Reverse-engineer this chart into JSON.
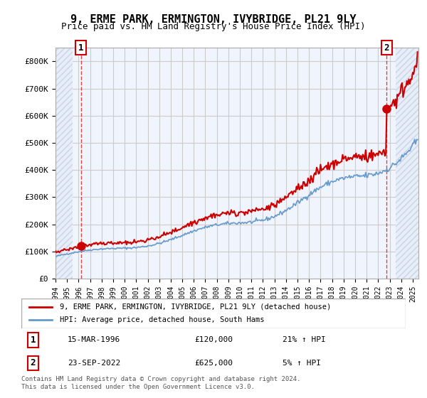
{
  "title": "9, ERME PARK, ERMINGTON, IVYBRIDGE, PL21 9LY",
  "subtitle": "Price paid vs. HM Land Registry's House Price Index (HPI)",
  "legend_line1": "9, ERME PARK, ERMINGTON, IVYBRIDGE, PL21 9LY (detached house)",
  "legend_line2": "HPI: Average price, detached house, South Hams",
  "table_row1": [
    "1",
    "15-MAR-1996",
    "£120,000",
    "21% ↑ HPI"
  ],
  "table_row2": [
    "2",
    "23-SEP-2022",
    "£625,000",
    "5% ↑ HPI"
  ],
  "footer": "Contains HM Land Registry data © Crown copyright and database right 2024.\nThis data is licensed under the Open Government Licence v3.0.",
  "hatch_color": "#c8d4e8",
  "hatch_bg": "#e8eef8",
  "red_line_color": "#cc0000",
  "blue_line_color": "#6699cc",
  "grid_color": "#cccccc",
  "background_color": "#ffffff",
  "plot_bg": "#f0f4fc",
  "ylim": [
    0,
    850000
  ],
  "yticks": [
    0,
    100000,
    200000,
    300000,
    400000,
    500000,
    600000,
    700000,
    800000
  ],
  "ytick_labels": [
    "£0",
    "£100K",
    "£200K",
    "£300K",
    "£400K",
    "£500K",
    "£600K",
    "£700K",
    "£800K"
  ],
  "sale1_x": 1996.21,
  "sale1_y": 120000,
  "sale2_x": 2022.73,
  "sale2_y": 625000,
  "marker1_label": "1",
  "marker2_label": "2",
  "xmin": 1994,
  "xmax": 2025.5
}
